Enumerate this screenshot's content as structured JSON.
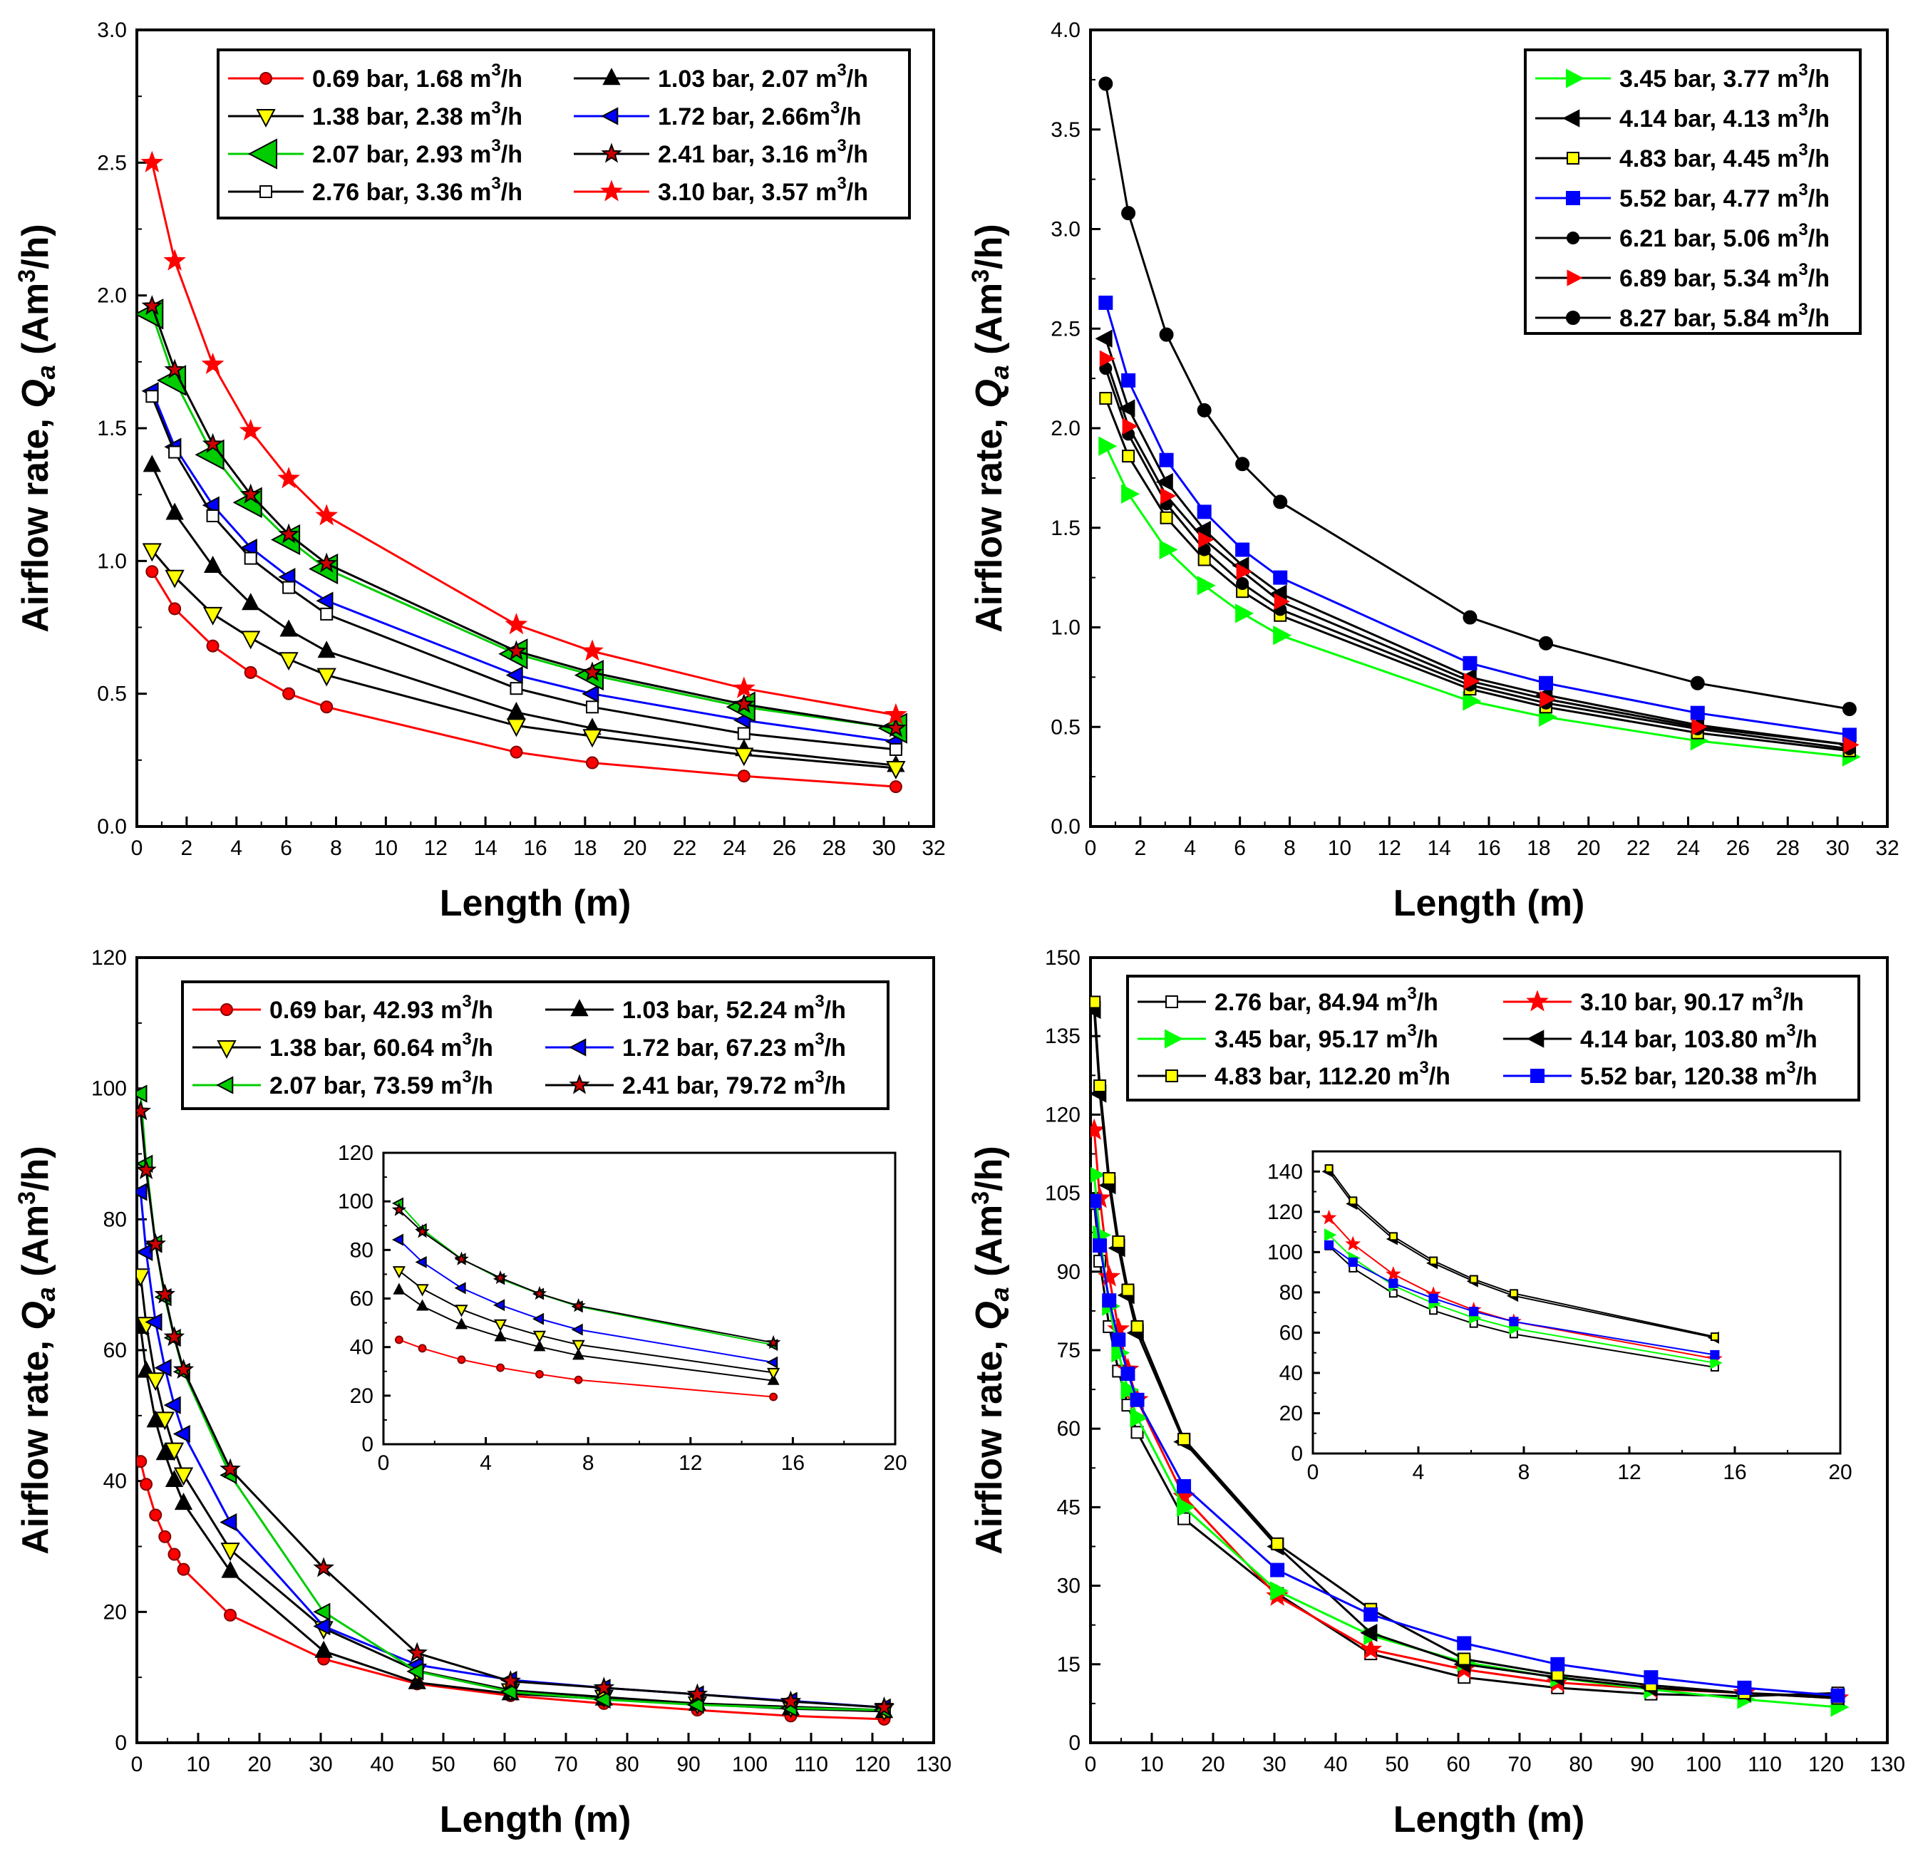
{
  "chart_data": [
    {
      "type": "line",
      "panel": "top-left",
      "title": "",
      "xlabel": "Length (m)",
      "ylabel": "Airflow rate, Qa (Am3/h)",
      "ylabel_parts": [
        "Airflow rate, ",
        "Q",
        "a",
        " (Am",
        "3",
        "/h)"
      ],
      "xlim": [
        0,
        32
      ],
      "ylim": [
        0,
        3.0
      ],
      "xticks": [
        "0",
        "2",
        "4",
        "6",
        "8",
        "10",
        "12",
        "14",
        "16",
        "18",
        "20",
        "22",
        "24",
        "26",
        "28",
        "30",
        "32"
      ],
      "yticks": [
        "0.0",
        "0.5",
        "1.0",
        "1.5",
        "2.0",
        "2.5",
        "3.0"
      ],
      "legend_position": "top-right",
      "legend_columns": 2,
      "x": [
        0.61,
        1.52,
        3.05,
        4.57,
        6.1,
        7.62,
        15.24,
        18.29,
        24.38,
        30.48
      ],
      "series": [
        {
          "pressure": "0.69 bar, 1.68 m",
          "sup": "3",
          "unit": "/h",
          "color": "#ff0000",
          "marker": "circle",
          "markerFill": "#ff0000",
          "markerStroke": "#800000",
          "markerSize": 8,
          "values": [
            0.96,
            0.82,
            0.68,
            0.58,
            0.5,
            0.45,
            0.28,
            0.24,
            0.19,
            0.15
          ]
        },
        {
          "pressure": "1.03 bar, 2.07 m",
          "sup": "3",
          "unit": "/h",
          "color": "#000000",
          "marker": "triangle-up",
          "markerFill": "#000000",
          "markerStroke": "#000000",
          "markerSize": 11,
          "values": [
            1.36,
            1.18,
            0.98,
            0.84,
            0.74,
            0.66,
            0.43,
            0.37,
            0.29,
            0.23
          ]
        },
        {
          "pressure": "1.38 bar, 2.38 m",
          "sup": "3",
          "unit": "/h",
          "color": "#000000",
          "marker": "triangle-down",
          "markerFill": "#ffff00",
          "markerStroke": "#000000",
          "markerSize": 12,
          "values": [
            1.04,
            0.94,
            0.8,
            0.71,
            0.63,
            0.57,
            0.38,
            0.34,
            0.27,
            0.22
          ]
        },
        {
          "pressure": "1.72 bar, 2.66m",
          "sup": "3",
          "unit": "/h",
          "color": "#0000ff",
          "marker": "triangle-left",
          "markerFill": "#0000ff",
          "markerStroke": "#000000",
          "markerSize": 11,
          "values": [
            1.64,
            1.43,
            1.21,
            1.05,
            0.94,
            0.85,
            0.57,
            0.5,
            0.4,
            0.32
          ]
        },
        {
          "pressure": "2.07 bar, 2.93 m",
          "sup": "3",
          "unit": "/h",
          "color": "#00cc00",
          "marker": "triangle-left",
          "markerFill": "#00cc00",
          "markerStroke": "#000000",
          "markerSize": 20,
          "values": [
            1.93,
            1.68,
            1.4,
            1.22,
            1.08,
            0.97,
            0.65,
            0.57,
            0.45,
            0.37
          ]
        },
        {
          "pressure": "2.41 bar, 3.16 m",
          "sup": "3",
          "unit": "/h",
          "color": "#000000",
          "marker": "star",
          "markerFill": "#cc0000",
          "markerStroke": "#000000",
          "markerSize": 11,
          "values": [
            1.96,
            1.72,
            1.44,
            1.25,
            1.1,
            0.99,
            0.66,
            0.58,
            0.46,
            0.37
          ]
        },
        {
          "pressure": "2.76 bar, 3.36 m",
          "sup": "3",
          "unit": "/h",
          "color": "#000000",
          "marker": "square",
          "markerFill": "#ffffff",
          "markerStroke": "#000000",
          "markerSize": 8,
          "values": [
            1.62,
            1.41,
            1.17,
            1.01,
            0.9,
            0.8,
            0.52,
            0.45,
            0.35,
            0.29
          ]
        },
        {
          "pressure": "3.10 bar, 3.57 m",
          "sup": "3",
          "unit": "/h",
          "color": "#ff0000",
          "marker": "star",
          "markerFill": "#ff0000",
          "markerStroke": "#ff0000",
          "markerSize": 12,
          "values": [
            2.5,
            2.13,
            1.74,
            1.49,
            1.31,
            1.17,
            0.76,
            0.66,
            0.52,
            0.42
          ]
        }
      ]
    },
    {
      "type": "line",
      "panel": "top-right",
      "title": "",
      "xlabel": "Length (m)",
      "ylabel": "Airflow rate, Qa (Am3/h)",
      "ylabel_parts": [
        "Airflow rate, ",
        "Q",
        "a",
        " (Am",
        "3",
        "/h)"
      ],
      "xlim": [
        0,
        32
      ],
      "ylim": [
        0,
        4.0
      ],
      "xticks": [
        "0",
        "2",
        "4",
        "6",
        "8",
        "10",
        "12",
        "14",
        "16",
        "18",
        "20",
        "22",
        "24",
        "26",
        "28",
        "30",
        "32"
      ],
      "yticks": [
        "0.0",
        "0.5",
        "1.0",
        "1.5",
        "2.0",
        "2.5",
        "3.0",
        "3.5",
        "4.0"
      ],
      "legend_position": "top-right",
      "legend_columns": 1,
      "x": [
        0.61,
        1.52,
        3.05,
        4.57,
        6.1,
        7.62,
        15.24,
        18.29,
        24.38,
        30.48
      ],
      "series": [
        {
          "pressure": "3.45 bar, 3.77 m",
          "sup": "3",
          "unit": "/h",
          "color": "#00ff00",
          "marker": "triangle-right",
          "markerFill": "#00ff00",
          "markerStroke": "#00ff00",
          "markerSize": 12,
          "values": [
            1.91,
            1.67,
            1.39,
            1.21,
            1.07,
            0.96,
            0.63,
            0.55,
            0.43,
            0.35
          ]
        },
        {
          "pressure": "4.14 bar, 4.13 m",
          "sup": "3",
          "unit": "/h",
          "color": "#000000",
          "marker": "triangle-left",
          "markerFill": "#000000",
          "markerStroke": "#000000",
          "markerSize": 11,
          "values": [
            2.45,
            2.1,
            1.73,
            1.49,
            1.31,
            1.17,
            0.75,
            0.66,
            0.51,
            0.41
          ]
        },
        {
          "pressure": "4.83 bar, 4.45 m",
          "sup": "3",
          "unit": "/h",
          "color": "#000000",
          "marker": "square",
          "markerFill": "#ffff00",
          "markerStroke": "#000000",
          "markerSize": 8,
          "values": [
            2.15,
            1.86,
            1.55,
            1.34,
            1.18,
            1.06,
            0.69,
            0.6,
            0.47,
            0.38
          ]
        },
        {
          "pressure": "5.52 bar, 4.77 m",
          "sup": "3",
          "unit": "/h",
          "color": "#0000ff",
          "marker": "square",
          "markerFill": "#0000ff",
          "markerStroke": "#0000ff",
          "markerSize": 9,
          "values": [
            2.63,
            2.24,
            1.84,
            1.58,
            1.39,
            1.25,
            0.82,
            0.72,
            0.57,
            0.46
          ]
        },
        {
          "pressure": "6.21 bar, 5.06 m",
          "sup": "3",
          "unit": "/h",
          "color": "#000000",
          "marker": "circle",
          "markerFill": "#000000",
          "markerStroke": "#000000",
          "markerSize": 8,
          "values": [
            2.3,
            1.97,
            1.62,
            1.39,
            1.22,
            1.09,
            0.71,
            0.62,
            0.49,
            0.39
          ]
        },
        {
          "pressure": "6.89 bar, 5.34 m",
          "sup": "3",
          "unit": "/h",
          "color": "#000000",
          "marker": "triangle-right",
          "markerFill": "#ff0000",
          "markerStroke": "#ff0000",
          "markerSize": 10,
          "values": [
            2.35,
            2.01,
            1.66,
            1.44,
            1.28,
            1.13,
            0.73,
            0.64,
            0.5,
            0.41
          ]
        },
        {
          "pressure": "8.27 bar, 5.84 m",
          "sup": "3",
          "unit": "/h",
          "color": "#000000",
          "marker": "circle",
          "markerFill": "#000000",
          "markerStroke": "#000000",
          "markerSize": 9,
          "values": [
            3.73,
            3.08,
            2.47,
            2.09,
            1.82,
            1.63,
            1.05,
            0.92,
            0.72,
            0.59
          ]
        }
      ]
    },
    {
      "type": "line",
      "panel": "bottom-left",
      "title": "",
      "xlabel": "Length (m)",
      "ylabel": "Airflow rate, Qa (Am3/h)",
      "ylabel_parts": [
        "Airflow rate, ",
        "Q",
        "a",
        " (Am",
        "3",
        "/h)"
      ],
      "xlim": [
        0,
        130
      ],
      "ylim": [
        0,
        120
      ],
      "xticks": [
        "0",
        "10",
        "20",
        "30",
        "40",
        "50",
        "60",
        "70",
        "80",
        "90",
        "100",
        "110",
        "120",
        "130"
      ],
      "yticks": [
        "0",
        "20",
        "40",
        "60",
        "80",
        "100",
        "120"
      ],
      "legend_position": "top-right",
      "legend_columns": 2,
      "x": [
        0.61,
        1.52,
        3.05,
        4.57,
        6.1,
        7.62,
        15.24,
        30.48,
        45.72,
        60.96,
        76.2,
        91.44,
        106.68,
        121.92
      ],
      "series": [
        {
          "pressure": "0.69 bar, 42.93 m",
          "sup": "3",
          "unit": "/h",
          "color": "#ff0000",
          "marker": "circle",
          "markerFill": "#ff0000",
          "markerStroke": "#800000",
          "markerSize": 8,
          "values": [
            43,
            39.5,
            34.8,
            31.5,
            28.8,
            26.5,
            19.5,
            12.8,
            9,
            7.2,
            6,
            5,
            4.1,
            3.6
          ]
        },
        {
          "pressure": "1.03 bar, 52.24 m",
          "sup": "3",
          "unit": "/h",
          "color": "#000000",
          "marker": "triangle-up",
          "markerFill": "#000000",
          "markerStroke": "#000000",
          "markerSize": 11,
          "values": [
            63.5,
            56.8,
            49.2,
            44.2,
            40.1,
            36.6,
            26.2,
            14,
            9.2,
            7.5,
            6.7,
            5.9,
            5.2,
            4.8
          ]
        },
        {
          "pressure": "1.38 bar, 60.64 m",
          "sup": "3",
          "unit": "/h",
          "color": "#000000",
          "marker": "triangle-down",
          "markerFill": "#ffff00",
          "markerStroke": "#000000",
          "markerSize": 12,
          "values": [
            71.4,
            64,
            55.5,
            49.5,
            44.8,
            41,
            29.5,
            17.5,
            11,
            8,
            7,
            6,
            5.5,
            5
          ]
        },
        {
          "pressure": "1.72 bar, 67.23 m",
          "sup": "3",
          "unit": "/h",
          "color": "#0000ff",
          "marker": "triangle-left",
          "markerFill": "#0000ff",
          "markerStroke": "#000000",
          "markerSize": 11,
          "values": [
            84.2,
            75,
            64.3,
            57.3,
            51.6,
            47.2,
            33.7,
            17.8,
            11.9,
            9.6,
            8.4,
            7.4,
            6.4,
            5.4
          ]
        },
        {
          "pressure": "2.07 bar, 73.59 m",
          "sup": "3",
          "unit": "/h",
          "color": "#00cc00",
          "marker": "triangle-left",
          "markerFill": "#00cc00",
          "markerStroke": "#000000",
          "markerSize": 11,
          "values": [
            99.2,
            88.5,
            76.3,
            68.1,
            61.9,
            56.7,
            40.9,
            20,
            10.9,
            7.8,
            6.6,
            5.8,
            5.3,
            5
          ]
        },
        {
          "pressure": "2.41 bar, 79.72 m",
          "sup": "3",
          "unit": "/h",
          "color": "#000000",
          "marker": "star",
          "markerFill": "#cc0000",
          "markerStroke": "#000000",
          "markerSize": 11,
          "values": [
            96.5,
            87.5,
            76.2,
            68.5,
            62,
            57,
            41.8,
            26.7,
            13.7,
            9.4,
            8.4,
            7.4,
            6.3,
            5.4
          ]
        }
      ],
      "inset": {
        "xlim": [
          0,
          20
        ],
        "ylim": [
          0,
          120
        ],
        "xticks": [
          "0",
          "4",
          "8",
          "12",
          "16",
          "20"
        ],
        "yticks": [
          "0",
          "20",
          "40",
          "60",
          "80",
          "100",
          "120"
        ]
      }
    },
    {
      "type": "line",
      "panel": "bottom-right",
      "title": "",
      "xlabel": "Length (m)",
      "ylabel": "Airflow rate, Qa (Am3/h)",
      "ylabel_parts": [
        "Airflow rate, ",
        "Q",
        "a",
        " (Am",
        "3",
        "/h)"
      ],
      "xlim": [
        0,
        130
      ],
      "ylim": [
        0,
        150
      ],
      "xticks": [
        "0",
        "10",
        "20",
        "30",
        "40",
        "50",
        "60",
        "70",
        "80",
        "90",
        "100",
        "110",
        "120",
        "130"
      ],
      "yticks": [
        "0",
        "15",
        "30",
        "45",
        "60",
        "75",
        "90",
        "105",
        "120",
        "135",
        "150"
      ],
      "legend_position": "top-right",
      "legend_columns": 2,
      "x": [
        0.61,
        1.52,
        3.05,
        4.57,
        6.1,
        7.62,
        15.24,
        30.48,
        45.72,
        60.96,
        76.2,
        91.44,
        106.68,
        121.92
      ],
      "series": [
        {
          "pressure": "2.76 bar, 84.94 m",
          "sup": "3",
          "unit": "/h",
          "color": "#000000",
          "marker": "square",
          "markerFill": "#ffffff",
          "markerStroke": "#000000",
          "markerSize": 8,
          "values": [
            103,
            92,
            79.5,
            71,
            64.5,
            59.3,
            42.8,
            28.5,
            17,
            12.5,
            10.5,
            9.3,
            8.9,
            9.5
          ]
        },
        {
          "pressure": "3.10 bar, 90.17 m",
          "sup": "3",
          "unit": "/h",
          "color": "#ff0000",
          "marker": "star",
          "markerFill": "#ff0000",
          "markerStroke": "#ff0000",
          "markerSize": 12,
          "values": [
            117,
            104,
            89,
            79,
            71.3,
            65.5,
            47,
            28,
            17.8,
            14,
            11.5,
            10.3,
            9.5,
            8.5
          ]
        },
        {
          "pressure": "3.45 bar, 95.17 m",
          "sup": "3",
          "unit": "/h",
          "color": "#00ff00",
          "marker": "triangle-right",
          "markerFill": "#00ff00",
          "markerStroke": "#00ff00",
          "markerSize": 12,
          "values": [
            108.5,
            97,
            83.4,
            74.5,
            67.4,
            62.1,
            45,
            29,
            20.5,
            15.4,
            12.4,
            10.2,
            8.3,
            6.8
          ]
        },
        {
          "pressure": "4.14 bar, 103.80 m",
          "sup": "3",
          "unit": "/h",
          "color": "#000000",
          "marker": "triangle-left",
          "markerFill": "#000000",
          "markerStroke": "#000000",
          "markerSize": 11,
          "values": [
            140,
            124,
            106.5,
            94.5,
            85.5,
            78.3,
            57.5,
            37.5,
            21,
            15,
            12.5,
            10.5,
            9.5,
            8.8
          ]
        },
        {
          "pressure": "4.83 bar, 112.20 m",
          "sup": "3",
          "unit": "/h",
          "color": "#000000",
          "marker": "square",
          "markerFill": "#ffff00",
          "markerStroke": "#000000",
          "markerSize": 8,
          "values": [
            141.5,
            125.5,
            107.8,
            95.7,
            86.5,
            79.5,
            58,
            38,
            25.5,
            16,
            13,
            11,
            9.5,
            8.5
          ]
        },
        {
          "pressure": "5.52 bar, 120.38 m",
          "sup": "3",
          "unit": "/h",
          "color": "#0000ff",
          "marker": "square",
          "markerFill": "#0000ff",
          "markerStroke": "#0000ff",
          "markerSize": 9,
          "values": [
            103.5,
            95,
            84.5,
            77,
            70.5,
            65.5,
            49,
            33,
            24.5,
            19,
            15,
            12.5,
            10.5,
            9
          ]
        }
      ],
      "inset": {
        "xlim": [
          0,
          20
        ],
        "ylim": [
          0,
          150
        ],
        "xticks": [
          "0",
          "4",
          "8",
          "12",
          "16",
          "20"
        ],
        "yticks": [
          "0",
          "20",
          "40",
          "60",
          "80",
          "100",
          "120",
          "140"
        ]
      }
    }
  ]
}
